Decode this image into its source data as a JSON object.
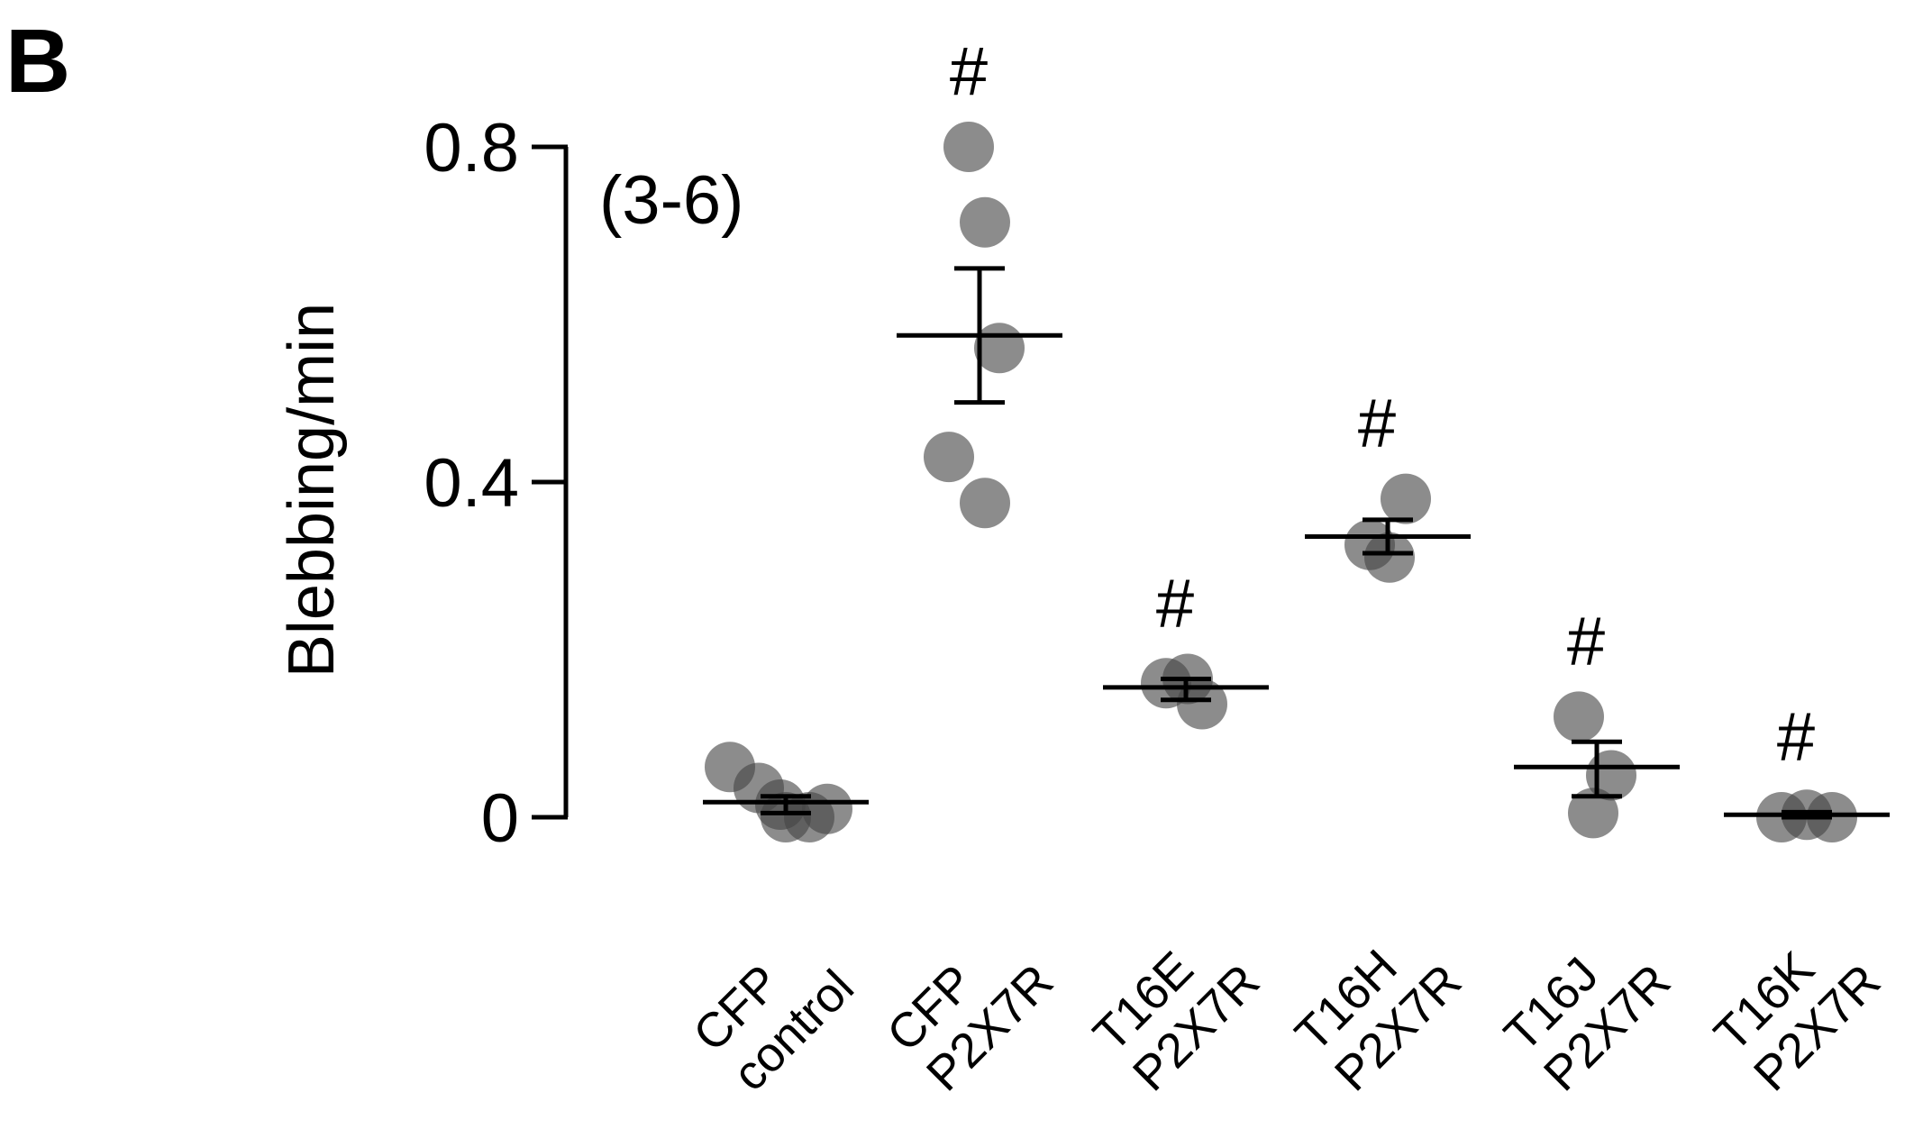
{
  "panel_label": "B",
  "chart_data": {
    "type": "scatter",
    "title": "",
    "ylabel": "Blebbing/min",
    "xlabel": "",
    "ylim": [
      0,
      0.8
    ],
    "yticks": [
      0,
      0.4,
      0.8
    ],
    "ytick_labels": [
      "0",
      "0.4",
      "0.8"
    ],
    "annotation": "(3-6)",
    "grid": false,
    "groups": [
      {
        "id": "cfp-control",
        "label_lines": [
          "CFP",
          "control"
        ],
        "mean": 0.018,
        "sem_low": 0.005,
        "sem_high": 0.025,
        "points": [
          0.06,
          0.035,
          0.015,
          0.0,
          0.0,
          0.01
        ],
        "significance": ""
      },
      {
        "id": "cfp-p2x7r",
        "label_lines": [
          "CFP",
          "P2X7R"
        ],
        "mean": 0.575,
        "sem_low": 0.495,
        "sem_high": 0.655,
        "points": [
          0.8,
          0.71,
          0.56,
          0.43,
          0.375
        ],
        "significance": "#"
      },
      {
        "id": "t16e-p2x7r",
        "label_lines": [
          "T16E",
          "P2X7R"
        ],
        "mean": 0.155,
        "sem_low": 0.14,
        "sem_high": 0.165,
        "points": [
          0.16,
          0.165,
          0.135
        ],
        "significance": "#"
      },
      {
        "id": "t16h-p2x7r",
        "label_lines": [
          "T16H",
          "P2X7R"
        ],
        "mean": 0.335,
        "sem_low": 0.315,
        "sem_high": 0.355,
        "points": [
          0.38,
          0.325,
          0.31
        ],
        "significance": "#"
      },
      {
        "id": "t16j-p2x7r",
        "label_lines": [
          "T16J",
          "P2X7R"
        ],
        "mean": 0.06,
        "sem_low": 0.025,
        "sem_high": 0.09,
        "points": [
          0.12,
          0.05,
          0.005
        ],
        "significance": "#"
      },
      {
        "id": "t16k-p2x7r",
        "label_lines": [
          "T16K",
          "P2X7R"
        ],
        "mean": 0.003,
        "sem_low": 0.0,
        "sem_high": 0.006,
        "points": [
          0.0,
          0.003,
          0.0
        ],
        "significance": "#"
      }
    ]
  }
}
